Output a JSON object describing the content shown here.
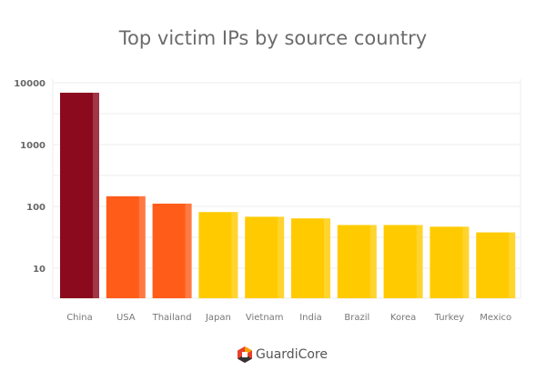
{
  "chart_data": {
    "type": "bar",
    "title": "Top victim IPs by source country",
    "xlabel": "",
    "ylabel": "",
    "yscale": "log",
    "ylim": [
      3.3,
      10000
    ],
    "yticks": [
      "10",
      "100",
      "1000",
      "10000"
    ],
    "grid": true,
    "categories": [
      "China",
      "USA",
      "Thailand",
      "Japan",
      "Vietnam",
      "India",
      "Brazil",
      "Korea",
      "Turkey",
      "Mexico"
    ],
    "values": [
      6900,
      146,
      111,
      81,
      68,
      64,
      50,
      50,
      47,
      38
    ],
    "colors": [
      "#8b0a1e",
      "#ff5c1a",
      "#ff5c1a",
      "#ffcb00",
      "#ffcb00",
      "#ffcb00",
      "#ffcb00",
      "#ffcb00",
      "#ffcb00",
      "#ffcb00"
    ]
  },
  "logo": {
    "text": "GuardiCore"
  }
}
